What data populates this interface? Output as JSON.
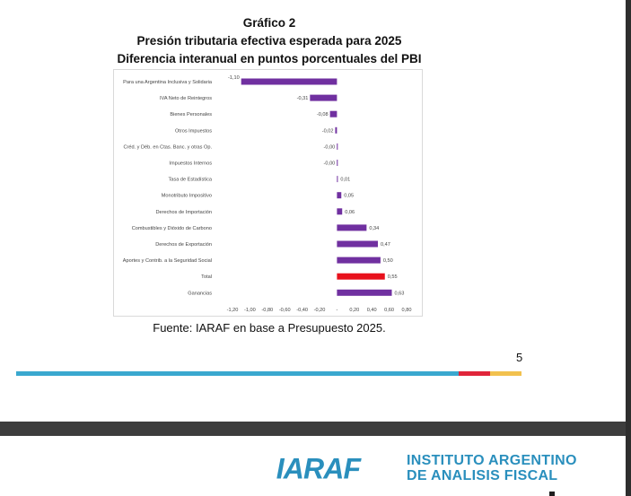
{
  "header": {
    "graph_number": "Gráfico 2",
    "title": "Presión tributaria efectiva esperada para 2025",
    "subtitle": "Diferencia interanual en puntos porcentuales del PBI"
  },
  "footer": {
    "source": "Fuente: IARAF en base a Presupuesto 2025.",
    "page_number": "5"
  },
  "brand": {
    "logo_text": "IARAF",
    "org_line1": "INSTITUTO ARGENTINO",
    "org_line2": "DE ANALISIS FISCAL",
    "logo_color": "#2a8fbd"
  },
  "colors": {
    "bar": "#7030a0",
    "highlight_bar": "#e8111c",
    "rule_blue": "#3aa8cf",
    "rule_red": "#e0253a",
    "rule_yellow": "#f2c14e"
  },
  "chart_data": {
    "type": "bar",
    "orientation": "horizontal",
    "categories": [
      "Para una Argentina Inclusiva y Solidaria",
      "IVA Neto de Reintegros",
      "Bienes Personales",
      "Otros Impuestos",
      "Créd. y Déb. en Ctas. Banc. y otras Op.",
      "Impuestos Internos",
      "Tasa de Estadística",
      "Monotributo Impositivo",
      "Derechos de Importación",
      "Combustibles y Dióxido de Carbono",
      "Derechos de Exportación",
      "Aportes y Contrib. a la Seguridad Social",
      "Total",
      "Ganancias"
    ],
    "values": [
      -1.1,
      -0.31,
      -0.08,
      -0.02,
      -0.001,
      -0.001,
      0.01,
      0.05,
      0.06,
      0.34,
      0.47,
      0.5,
      0.55,
      0.63
    ],
    "value_labels": [
      "-1,10",
      "-0,31",
      "-0,08",
      "-0,02",
      "-0,00",
      "-0,00",
      "0,01",
      "0,05",
      "0,06",
      "0,34",
      "0,47",
      "0,50",
      "0,55",
      "0,63"
    ],
    "highlight": "Total",
    "xlim": [
      -1.2,
      0.8
    ],
    "x_ticks": [
      -1.2,
      -1.0,
      -0.8,
      -0.6,
      -0.4,
      -0.2,
      0,
      0.2,
      0.4,
      0.6,
      0.8
    ],
    "x_tick_labels": [
      "-1,20",
      "-1,00",
      "-0,80",
      "-0,60",
      "-0,40",
      "-0,20",
      "-",
      "0,20",
      "0,40",
      "0,60",
      "0,80"
    ],
    "grid": false,
    "legend": "none"
  }
}
